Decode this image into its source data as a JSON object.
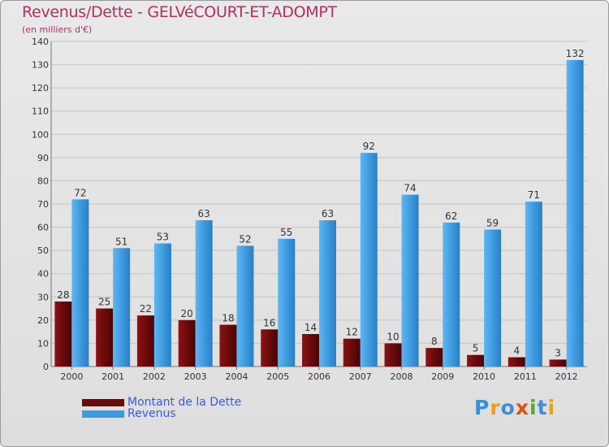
{
  "title": "Revenus/Dette - GELVéCOURT-ET-ADOMPT",
  "subtitle": "(en milliers d'€)",
  "legend": [
    {
      "label": "Montant de la Dette",
      "color": "#6b0a0a"
    },
    {
      "label": "Revenus",
      "color": "#3e9be0"
    }
  ],
  "logo": {
    "text": "Proxiti",
    "colors": [
      "#3a8fd8",
      "#e8a020",
      "#3a8fd8",
      "#e05010",
      "#5aaa30",
      "#3a8fd8",
      "#e8a020"
    ]
  },
  "chart_data": {
    "type": "bar",
    "title": "Revenus/Dette - GELVéCOURT-ET-ADOMPT",
    "ylabel": "(en milliers d'€)",
    "xlabel": "",
    "categories": [
      "2000",
      "2001",
      "2002",
      "2003",
      "2004",
      "2005",
      "2006",
      "2007",
      "2008",
      "2009",
      "2010",
      "2011",
      "2012"
    ],
    "series": [
      {
        "name": "Montant de la Dette",
        "color": "#6b0a0a",
        "values": [
          28,
          25,
          22,
          20,
          18,
          16,
          14,
          12,
          10,
          8,
          5,
          4,
          3
        ]
      },
      {
        "name": "Revenus",
        "color": "#3e9be0",
        "values": [
          72,
          51,
          53,
          63,
          52,
          55,
          63,
          92,
          74,
          62,
          59,
          71,
          132
        ]
      }
    ],
    "ylim": [
      0,
      140
    ],
    "yticks": [
      0,
      10,
      20,
      30,
      40,
      50,
      60,
      70,
      80,
      90,
      100,
      110,
      120,
      130,
      140
    ],
    "grid": true,
    "legend_position": "bottom-left"
  }
}
